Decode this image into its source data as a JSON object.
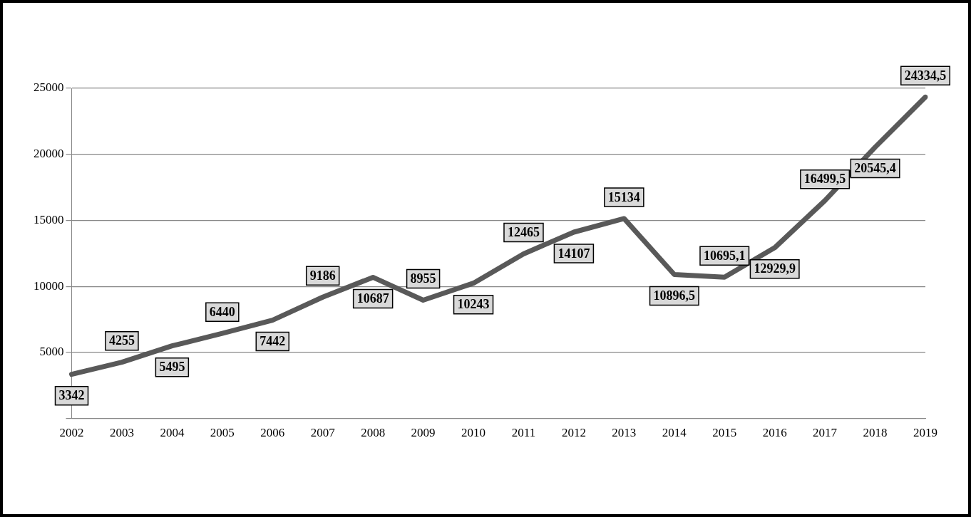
{
  "chart_data": {
    "type": "line",
    "categories": [
      "2002",
      "2003",
      "2004",
      "2005",
      "2006",
      "2007",
      "2008",
      "2009",
      "2010",
      "2011",
      "2012",
      "2013",
      "2014",
      "2015",
      "2016",
      "2017",
      "2018",
      "2019"
    ],
    "series": [
      {
        "color": "#595959",
        "values": [
          3342,
          4255,
          5495,
          6440,
          7442,
          9186,
          10687,
          8955,
          10243,
          12465,
          14107,
          15134,
          10896.5,
          10695.1,
          12929.9,
          16499.5,
          20545.4,
          24334.5
        ],
        "value_labels": [
          "3342",
          "4255",
          "5495",
          "6440",
          "7442",
          "9186",
          "10687",
          "8955",
          "10243",
          "12465",
          "14107",
          "15134",
          "10896,5",
          "10695,1",
          "12929,9",
          "16499,5",
          "20545,4",
          "24334,5"
        ]
      }
    ],
    "ylim": [
      0,
      25000
    ],
    "yticks": [
      {
        "value": 0,
        "label": null
      },
      5000,
      10000,
      15000,
      20000,
      25000
    ],
    "grid": "y",
    "legend": false,
    "marker": "none",
    "line_style": "solid"
  }
}
